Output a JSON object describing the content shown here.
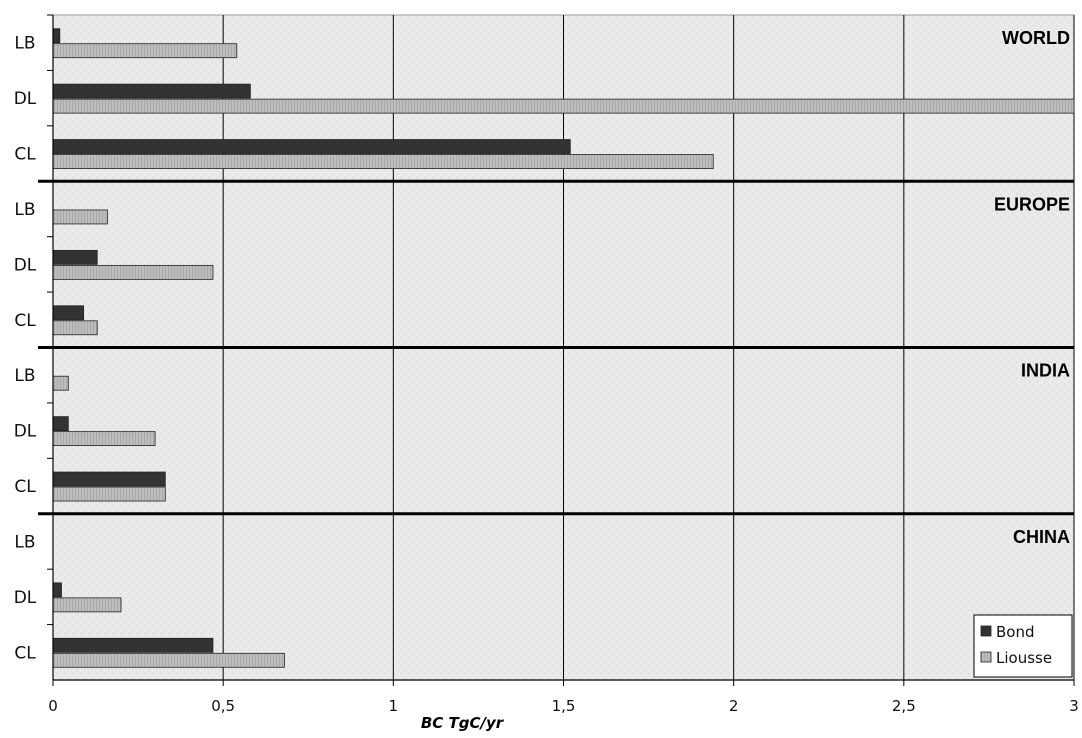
{
  "chart_data": {
    "type": "bar",
    "orientation": "horizontal",
    "xlabel": "BC TgC/yr",
    "xlim": [
      0,
      3
    ],
    "xticks": [
      "0",
      "0,5",
      "1",
      "1,5",
      "2",
      "2,5",
      "3"
    ],
    "grid": true,
    "legend_position": "bottom-right",
    "categories": [
      "LB",
      "DL",
      "CL"
    ],
    "colors": {
      "Bond": "#333333",
      "Liousse": "#b4b4b4"
    },
    "series": [
      {
        "name": "Bond",
        "color": "#333333"
      },
      {
        "name": "Liousse",
        "color": "#b4b4b4"
      }
    ],
    "panels": [
      {
        "region": "WORLD",
        "values": {
          "LB": {
            "Bond": 0.02,
            "Liousse": 0.54
          },
          "DL": {
            "Bond": 0.58,
            "Liousse": 3.0
          },
          "CL": {
            "Bond": 1.52,
            "Liousse": 1.94
          }
        }
      },
      {
        "region": "EUROPE",
        "values": {
          "LB": {
            "Bond": 0.0,
            "Liousse": 0.16
          },
          "DL": {
            "Bond": 0.13,
            "Liousse": 0.47
          },
          "CL": {
            "Bond": 0.09,
            "Liousse": 0.13
          }
        }
      },
      {
        "region": "INDIA",
        "values": {
          "LB": {
            "Bond": 0.0,
            "Liousse": 0.045
          },
          "DL": {
            "Bond": 0.045,
            "Liousse": 0.3
          },
          "CL": {
            "Bond": 0.33,
            "Liousse": 0.33
          }
        }
      },
      {
        "region": "CHINA",
        "values": {
          "LB": {
            "Bond": 0.0,
            "Liousse": 0.0
          },
          "DL": {
            "Bond": 0.025,
            "Liousse": 0.2
          },
          "CL": {
            "Bond": 0.47,
            "Liousse": 0.68
          }
        }
      }
    ]
  }
}
